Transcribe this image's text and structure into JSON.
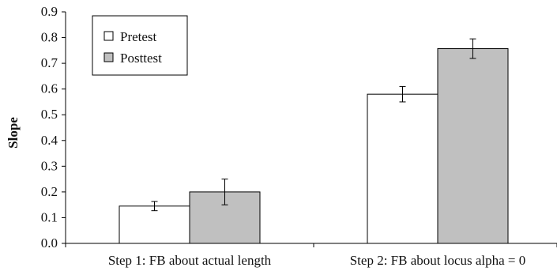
{
  "chart_data": {
    "type": "bar",
    "title": "",
    "xlabel": "",
    "ylabel": "Slope",
    "ylim": [
      0,
      0.9
    ],
    "yticks": [
      "0.0",
      "0.1",
      "0.2",
      "0.3",
      "0.4",
      "0.5",
      "0.6",
      "0.7",
      "0.8",
      "0.9"
    ],
    "categories": [
      "Step 1: FB about actual length",
      "Step 2: FB about locus alpha = 0"
    ],
    "series": [
      {
        "name": "Pretest",
        "color": "#ffffff",
        "values": [
          0.145,
          0.58
        ],
        "errors": [
          0.018,
          0.03
        ]
      },
      {
        "name": "Posttest",
        "color": "#c0c0c0",
        "values": [
          0.2,
          0.757
        ],
        "errors": [
          0.05,
          0.038
        ]
      }
    ],
    "grid": false,
    "legend_position": "top-left"
  }
}
